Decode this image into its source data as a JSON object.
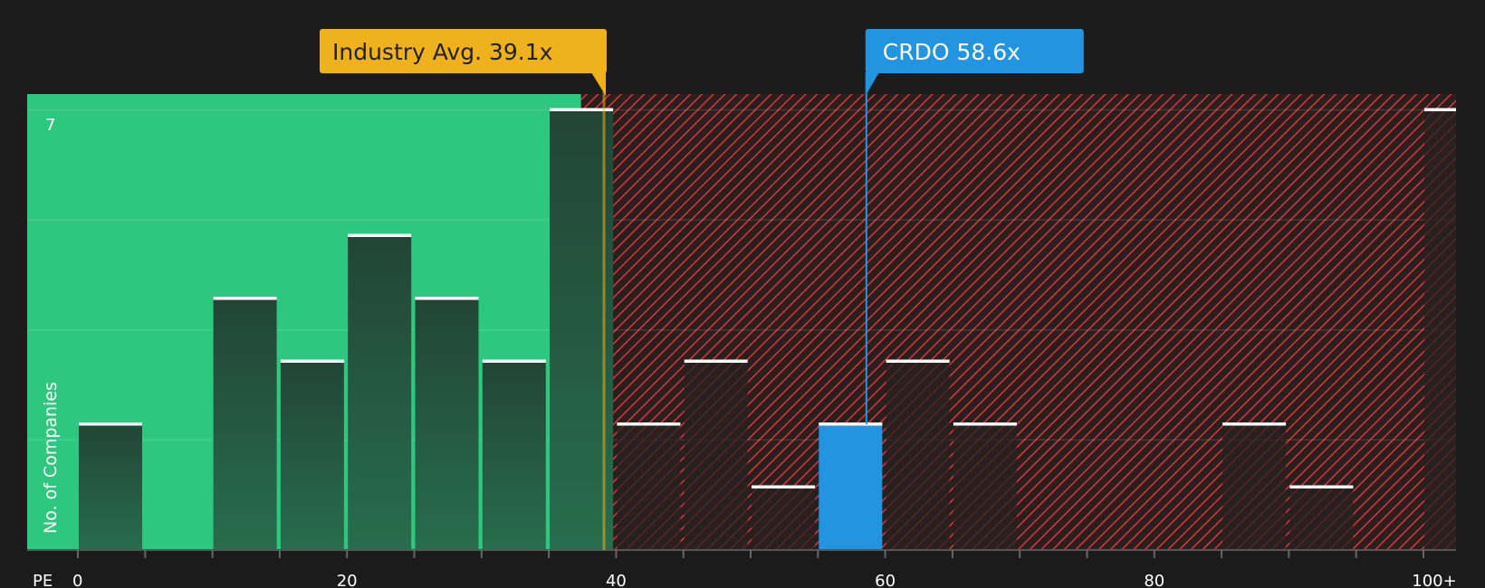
{
  "chart_data": {
    "type": "bar",
    "xlabel": "PE",
    "ylabel": "No. of Companies",
    "bin_width": 5,
    "bins": [
      {
        "from": 0,
        "to": 5,
        "count": 2
      },
      {
        "from": 5,
        "to": 10,
        "count": 0
      },
      {
        "from": 10,
        "to": 15,
        "count": 4
      },
      {
        "from": 15,
        "to": 20,
        "count": 3
      },
      {
        "from": 20,
        "to": 25,
        "count": 5
      },
      {
        "from": 25,
        "to": 30,
        "count": 4
      },
      {
        "from": 30,
        "to": 35,
        "count": 3
      },
      {
        "from": 35,
        "to": 40,
        "count": 7
      },
      {
        "from": 40,
        "to": 45,
        "count": 2
      },
      {
        "from": 45,
        "to": 50,
        "count": 3
      },
      {
        "from": 50,
        "to": 55,
        "count": 1
      },
      {
        "from": 55,
        "to": 60,
        "count": 2,
        "highlight": true
      },
      {
        "from": 60,
        "to": 65,
        "count": 3
      },
      {
        "from": 65,
        "to": 70,
        "count": 2
      },
      {
        "from": 70,
        "to": 75,
        "count": 0
      },
      {
        "from": 75,
        "to": 80,
        "count": 0
      },
      {
        "from": 80,
        "to": 85,
        "count": 0
      },
      {
        "from": 85,
        "to": 90,
        "count": 2
      },
      {
        "from": 90,
        "to": 95,
        "count": 1
      },
      {
        "from": 95,
        "to": 100,
        "count": 0
      },
      {
        "from": 100,
        "to": null,
        "count": 7
      }
    ],
    "xticks": [
      "0",
      "20",
      "40",
      "60",
      "80",
      "100+"
    ],
    "xtick_values": [
      0,
      20,
      40,
      60,
      80,
      100
    ],
    "yticks": [
      "7"
    ],
    "ylim": [
      0,
      7
    ],
    "xlim": [
      -3.6,
      102.5
    ],
    "fair_zone_max": 37.4,
    "grid": true,
    "annotations": {
      "industry_avg": {
        "label": "Industry Avg. 39.1x",
        "value": 39.1
      },
      "company": {
        "label": "CRDO 58.6x",
        "value": 58.6
      }
    },
    "colors": {
      "background": "#1b1b1b",
      "fair_zone": "#2ec780",
      "overvalued_hatch": "#d93838",
      "bar_dark": "#234a38",
      "company_bar": "#2394e0",
      "industry_avg": "#f0b21c"
    }
  }
}
